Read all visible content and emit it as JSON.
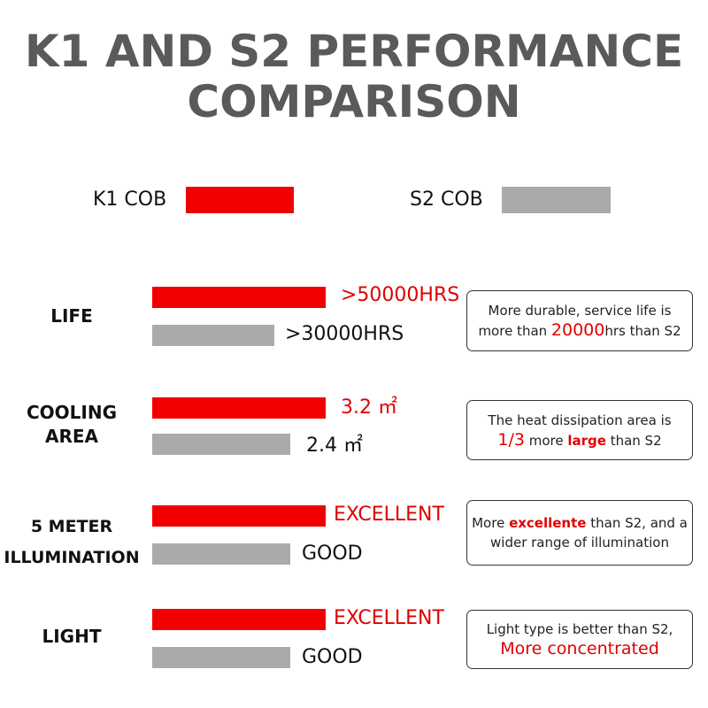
{
  "title": [
    "K1 AND S2 PERFORMANCE",
    "COMPARISON"
  ],
  "legend": [
    "K1 COB",
    "S2 COB"
  ],
  "rows": [
    {
      "label": [
        "LIFE"
      ],
      "k1": ">50000HRS",
      "s2": ">30000HRS",
      "note": [
        [
          {
            "text": "More durable, service life is"
          }
        ],
        [
          {
            "text": "more than "
          },
          {
            "text": "20000",
            "highlight": "big"
          },
          {
            "text": "hrs than S2"
          }
        ]
      ]
    },
    {
      "label": [
        "COOLING",
        "AREA"
      ],
      "k1": "3.2 ㎡",
      "s2": "2.4 ㎡",
      "note": [
        [
          {
            "text": "The heat dissipation area is"
          }
        ],
        [
          {
            "text": "1/3",
            "highlight": "big"
          },
          {
            "text": " more "
          },
          {
            "text": "large",
            "highlight": "bold"
          },
          {
            "text": " than S2"
          }
        ]
      ]
    },
    {
      "label": [
        "5 METER",
        "ILLUMINATION"
      ],
      "k1": "EXCELLENT",
      "s2": "GOOD",
      "note": [
        [
          {
            "text": "More "
          },
          {
            "text": "excellente",
            "highlight": "bold"
          },
          {
            "text": " than S2, and a"
          }
        ],
        [
          {
            "text": "wider range of illumination"
          }
        ]
      ]
    },
    {
      "label": [
        "LIGHT"
      ],
      "k1": "EXCELLENT",
      "s2": "GOOD",
      "note": [
        [
          {
            "text": "Light type is better than S2,"
          }
        ],
        [
          {
            "text": "More concentrated",
            "highlight": "big"
          }
        ]
      ]
    }
  ]
}
